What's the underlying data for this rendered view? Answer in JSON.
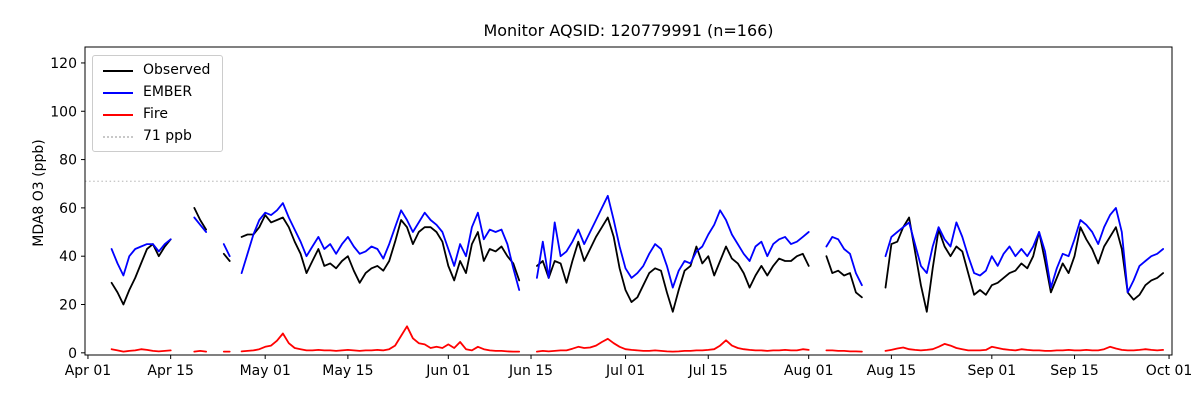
{
  "chart_data": {
    "type": "line",
    "title": "Monitor AQSID: 120779991 (n=166)",
    "ylabel": "MDA8 O3 (ppb)",
    "xlabel": "",
    "n_label": "n=166",
    "grid": false,
    "legend_position": "upper left",
    "ylim": [
      0,
      126
    ],
    "yticks": [
      0,
      20,
      40,
      60,
      80,
      100,
      120
    ],
    "xticks": [
      {
        "day": 0,
        "label": "Apr 01"
      },
      {
        "day": 14,
        "label": "Apr 15"
      },
      {
        "day": 30,
        "label": "May 01"
      },
      {
        "day": 44,
        "label": "May 15"
      },
      {
        "day": 61,
        "label": "Jun 01"
      },
      {
        "day": 75,
        "label": "Jun 15"
      },
      {
        "day": 91,
        "label": "Jul 01"
      },
      {
        "day": 105,
        "label": "Jul 15"
      },
      {
        "day": 122,
        "label": "Aug 01"
      },
      {
        "day": 136,
        "label": "Aug 15"
      },
      {
        "day": 153,
        "label": "Sep 01"
      },
      {
        "day": 167,
        "label": "Sep 15"
      },
      {
        "day": 183,
        "label": "Oct 01"
      }
    ],
    "threshold": {
      "value": 71,
      "label": "71 ppb",
      "color": "#c8c8c8",
      "style": "dotted"
    },
    "days_note": "day offsets from Apr 01; gaps in sequence = missing data",
    "days": [
      4,
      5,
      6,
      7,
      8,
      9,
      10,
      11,
      12,
      13,
      14,
      18,
      19,
      20,
      23,
      24,
      26,
      27,
      28,
      29,
      30,
      31,
      32,
      33,
      34,
      35,
      36,
      37,
      38,
      39,
      40,
      41,
      42,
      43,
      44,
      45,
      46,
      47,
      48,
      49,
      50,
      51,
      52,
      53,
      54,
      55,
      56,
      57,
      58,
      59,
      60,
      61,
      62,
      63,
      64,
      65,
      66,
      67,
      68,
      69,
      70,
      71,
      72,
      73,
      76,
      77,
      78,
      79,
      80,
      81,
      82,
      83,
      84,
      85,
      86,
      87,
      88,
      89,
      90,
      91,
      92,
      93,
      94,
      95,
      96,
      97,
      98,
      99,
      100,
      101,
      102,
      103,
      104,
      105,
      106,
      107,
      108,
      109,
      110,
      111,
      112,
      113,
      114,
      115,
      116,
      117,
      118,
      119,
      120,
      121,
      122,
      125,
      126,
      127,
      128,
      129,
      130,
      131,
      135,
      136,
      137,
      138,
      139,
      140,
      141,
      142,
      143,
      144,
      145,
      146,
      147,
      148,
      149,
      150,
      151,
      152,
      153,
      154,
      155,
      156,
      157,
      158,
      159,
      160,
      161,
      162,
      163,
      164,
      165,
      166,
      167,
      168,
      169,
      170,
      171,
      172,
      173,
      174,
      175,
      176,
      177,
      178,
      179,
      180,
      181,
      182
    ],
    "series": [
      {
        "name": "Observed",
        "color": "#000000",
        "values": [
          29,
          25,
          20,
          26,
          31,
          37,
          43,
          45,
          40,
          44,
          47,
          60,
          55,
          51,
          41,
          38,
          48,
          49,
          49,
          52,
          57,
          54,
          55,
          56,
          52,
          46,
          41,
          33,
          38,
          43,
          36,
          37,
          35,
          38,
          40,
          34,
          29,
          33,
          35,
          36,
          34,
          38,
          46,
          55,
          52,
          45,
          50,
          52,
          52,
          50,
          46,
          36,
          30,
          38,
          33,
          45,
          50,
          38,
          43,
          42,
          44,
          40,
          37,
          30,
          36,
          38,
          31,
          38,
          37,
          29,
          38,
          46,
          38,
          43,
          48,
          52,
          56,
          48,
          35,
          26,
          21,
          23,
          28,
          33,
          35,
          34,
          25,
          17,
          26,
          34,
          36,
          44,
          37,
          40,
          32,
          38,
          44,
          39,
          37,
          33,
          27,
          32,
          36,
          32,
          36,
          39,
          38,
          38,
          40,
          41,
          36,
          40,
          33,
          34,
          32,
          33,
          25,
          23,
          27,
          45,
          46,
          52,
          56,
          42,
          28,
          17,
          35,
          51,
          44,
          40,
          44,
          42,
          33,
          24,
          26,
          24,
          28,
          29,
          31,
          33,
          34,
          37,
          35,
          40,
          50,
          38,
          25,
          31,
          37,
          33,
          40,
          52,
          47,
          43,
          37,
          44,
          48,
          52,
          43,
          25,
          22,
          24,
          28,
          30,
          31,
          33
        ]
      },
      {
        "name": "EMBER",
        "color": "#0000ff",
        "values": [
          43,
          37,
          32,
          40,
          43,
          44,
          45,
          45,
          42,
          45,
          47,
          56,
          53,
          50,
          45,
          40,
          33,
          41,
          49,
          55,
          58,
          57,
          59,
          62,
          56,
          51,
          46,
          40,
          44,
          48,
          43,
          45,
          41,
          45,
          48,
          44,
          41,
          42,
          44,
          43,
          39,
          45,
          52,
          59,
          55,
          50,
          54,
          58,
          55,
          53,
          50,
          43,
          36,
          45,
          40,
          52,
          58,
          47,
          51,
          50,
          51,
          45,
          35,
          26,
          31,
          46,
          31,
          54,
          40,
          42,
          46,
          51,
          45,
          50,
          55,
          60,
          65,
          55,
          44,
          35,
          31,
          33,
          36,
          41,
          45,
          43,
          36,
          27,
          34,
          38,
          37,
          42,
          44,
          49,
          53,
          59,
          55,
          49,
          45,
          41,
          38,
          44,
          46,
          40,
          45,
          47,
          48,
          45,
          46,
          48,
          50,
          44,
          48,
          47,
          43,
          41,
          33,
          28,
          40,
          48,
          50,
          52,
          54,
          45,
          36,
          33,
          44,
          52,
          47,
          44,
          54,
          48,
          40,
          33,
          32,
          34,
          40,
          36,
          41,
          44,
          40,
          43,
          40,
          44,
          50,
          42,
          27,
          35,
          41,
          40,
          47,
          55,
          53,
          50,
          45,
          52,
          57,
          60,
          50,
          25,
          30,
          36,
          38,
          40,
          41,
          43
        ]
      },
      {
        "name": "Fire",
        "color": "#ff0000",
        "values": [
          1.5,
          1,
          0.5,
          0.8,
          1,
          1.5,
          1.2,
          0.8,
          0.6,
          0.8,
          1,
          0.5,
          0.8,
          0.5,
          0.5,
          0.5,
          0.6,
          0.8,
          1,
          1.5,
          2.5,
          3,
          5,
          8,
          4,
          2,
          1.5,
          1,
          1,
          1.2,
          1,
          1,
          0.8,
          1,
          1.2,
          1,
          0.8,
          1,
          1,
          1.2,
          1,
          1.5,
          3,
          7,
          11,
          6,
          4,
          3.5,
          2,
          2.5,
          2,
          3.5,
          2,
          4.5,
          1.5,
          1,
          2.5,
          1.5,
          1,
          0.8,
          0.8,
          0.6,
          0.5,
          0.5,
          0.5,
          0.8,
          0.6,
          0.8,
          1,
          1,
          1.7,
          2.5,
          2,
          2.2,
          3,
          4.5,
          5.8,
          4,
          2.5,
          1.5,
          1.2,
          1,
          0.8,
          0.8,
          1,
          0.8,
          0.6,
          0.5,
          0.6,
          0.8,
          0.8,
          1,
          1,
          1.2,
          1.5,
          3,
          5.2,
          3,
          2,
          1.5,
          1.2,
          1,
          1,
          0.8,
          1,
          1,
          1.2,
          1,
          1,
          1.5,
          1.2,
          1,
          1,
          0.8,
          0.8,
          0.6,
          0.6,
          0.5,
          0.8,
          1.2,
          1.8,
          2.2,
          1.5,
          1.2,
          1,
          1.2,
          1.5,
          2.5,
          3.7,
          3,
          2,
          1.5,
          1,
          1,
          1,
          1.2,
          2.5,
          2,
          1.5,
          1.2,
          1,
          1.5,
          1.2,
          1,
          1,
          0.8,
          0.8,
          1,
          1,
          1.2,
          1,
          1,
          1.2,
          1,
          1,
          1.5,
          2.5,
          1.8,
          1.2,
          1,
          1,
          1.2,
          1.5,
          1.2,
          1,
          1.2
        ]
      }
    ]
  }
}
